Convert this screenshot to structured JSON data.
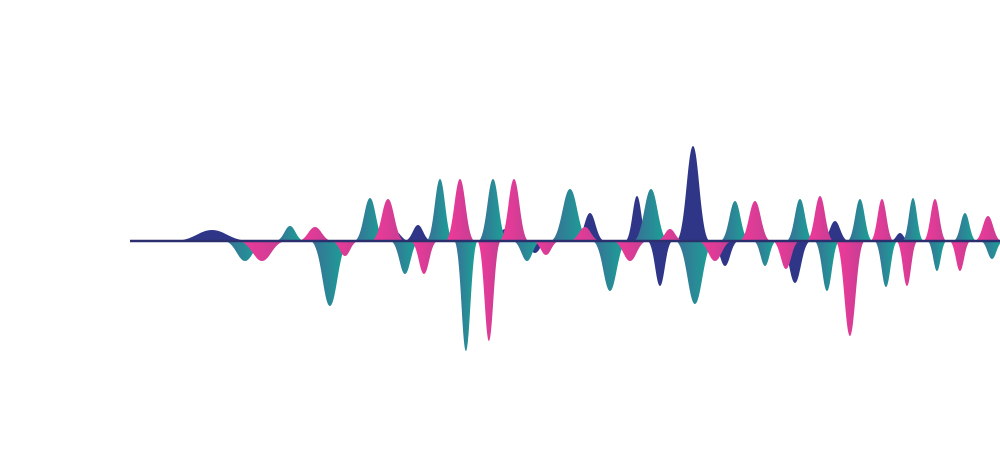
{
  "artwork": {
    "kind": "sound-wave-illustration",
    "colors": {
      "navy": "#2f3687",
      "teal_start": "#3a6c96",
      "teal_end": "#17a896",
      "pink_start": "#f4399a",
      "pink_end": "#c23f92",
      "baseline": "#2c2f6e",
      "background": "#ffffff"
    }
  }
}
